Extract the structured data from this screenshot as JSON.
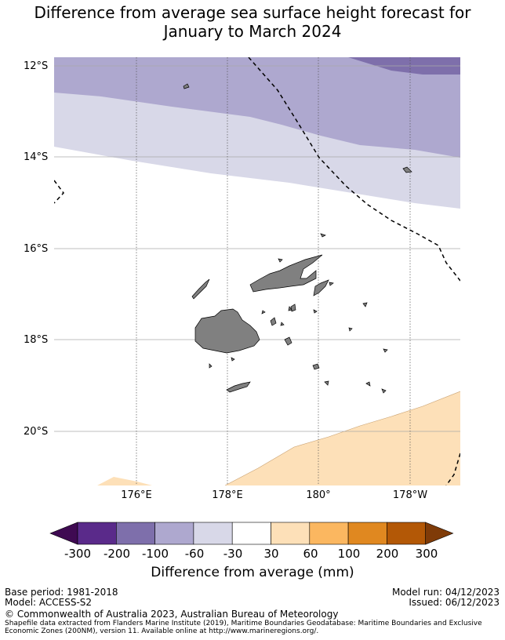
{
  "title_line1": "Difference from average sea surface height forecast for",
  "title_line2": "January to March 2024",
  "lat_labels": [
    "12°S",
    "14°S",
    "16°S",
    "18°S",
    "20°S"
  ],
  "lon_labels": [
    "176°E",
    "178°E",
    "180°",
    "178°W"
  ],
  "colorbar": {
    "labels": [
      "-300",
      "-200",
      "-100",
      "-60",
      "-30",
      "30",
      "60",
      "100",
      "200",
      "300"
    ],
    "title": "Difference from average (mm)",
    "colors": [
      "#3f0a52",
      "#5a2a8a",
      "#7e6fab",
      "#aea8cf",
      "#d8d8e8",
      "#ffffff",
      "#fde0b8",
      "#fbb760",
      "#e08820",
      "#b35806",
      "#7f3b08"
    ]
  },
  "footer": {
    "base_period": "Base period: 1981-2018",
    "model": "Model: ACCESS-S2",
    "model_run": "Model run: 04/12/2023",
    "issued": "Issued: 06/12/2023",
    "copyright": "© Commonwealth of Australia 2023, Australian Bureau of Meteorology",
    "shapefile_note": "Shapefile data extracted from Flanders Marine Institute (2019), Maritime Boundaries Geodatabase: Maritime Boundaries and Exclusive Economic Zones (200NM), version 11. Available online at http://www.marineregions.org/."
  }
}
